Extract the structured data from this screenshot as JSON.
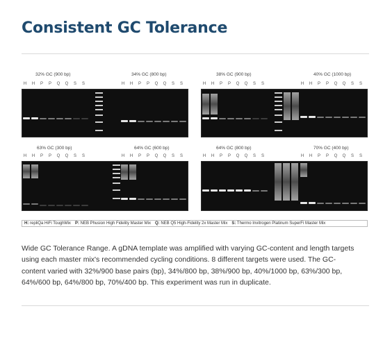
{
  "page": {
    "title": "Consistent GC Tolerance"
  },
  "figure": {
    "lane_labels": [
      "H",
      "H",
      "P",
      "P",
      "Q",
      "Q",
      "S",
      "S"
    ],
    "gels": [
      {
        "label": "32% GC (900 bp)"
      },
      {
        "label": "34% GC (800 bp)"
      },
      {
        "label": "38% GC (900 bp)"
      },
      {
        "label": "40% GC (1000 bp)"
      },
      {
        "label": "63% GC (300 bp)"
      },
      {
        "label": "64% GC (600 bp)"
      },
      {
        "label": "64% GC (800 bp)"
      },
      {
        "label": "70% GC (400 bp)"
      }
    ],
    "legend": [
      {
        "key": "H:",
        "text": "repliQa HiFi ToughMix"
      },
      {
        "key": "P:",
        "text": "NEB Phusion High Fidelity Master Mix"
      },
      {
        "key": "Q:",
        "text": "NEB Q5 High-Fidelity 2x Master Mix"
      },
      {
        "key": "S:",
        "text": "Thermo Invitrogen Platinum SuperFi Master Mix"
      }
    ]
  },
  "caption": {
    "text": "Wide GC Tolerance Range. A gDNA template was amplified with varying GC-content and length targets using each master mix's recommended cycling conditions. 8 different targets were used. The GC-content varied with 32%/900 base pairs (bp), 34%/800 bp, 38%/900 bp, 40%/1000 bp, 63%/300 bp, 64%/600 bp, 64%/800 bp, 70%/400 bp. This experiment was run in duplicate."
  }
}
